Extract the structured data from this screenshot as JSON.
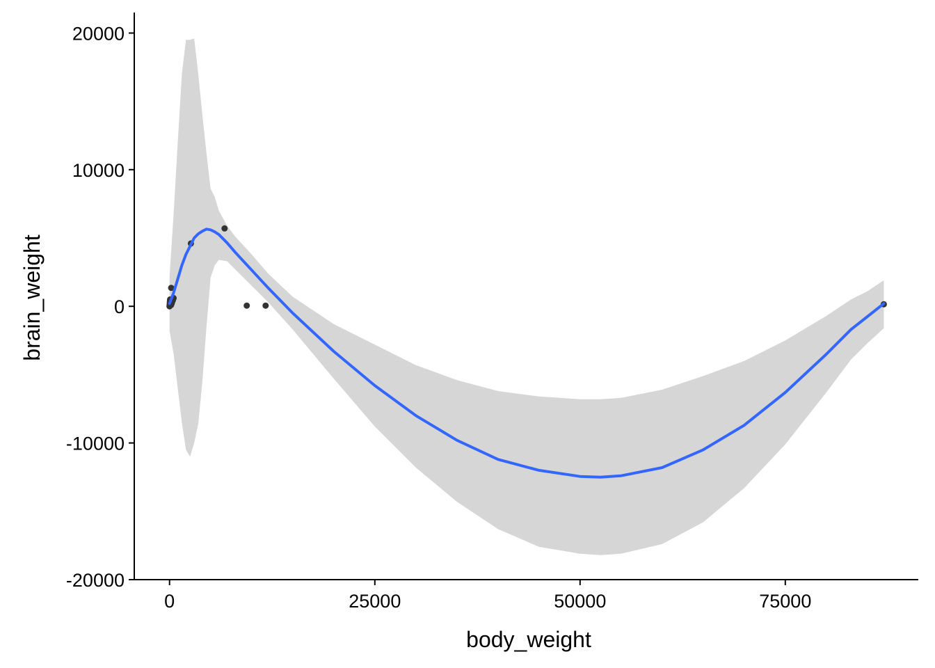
{
  "chart_data": {
    "type": "scatter",
    "xlabel": "body_weight",
    "ylabel": "brain_weight",
    "xlim": [
      -4300,
      91200
    ],
    "ylim": [
      -20000,
      21500
    ],
    "xticks": [
      {
        "value": 0,
        "label": "0"
      },
      {
        "value": 25000,
        "label": "25000"
      },
      {
        "value": 50000,
        "label": "50000"
      },
      {
        "value": 75000,
        "label": "75000"
      }
    ],
    "yticks": [
      {
        "value": -20000,
        "label": "-20000"
      },
      {
        "value": -10000,
        "label": "-10000"
      },
      {
        "value": 0,
        "label": "0"
      },
      {
        "value": 10000,
        "label": "10000"
      },
      {
        "value": 20000,
        "label": "20000"
      }
    ],
    "grid": false,
    "legend": "none",
    "colors": {
      "points": "#333333",
      "smooth_line": "#3366FF",
      "confidence_band": "#D6D6D6",
      "axis": "#000000"
    },
    "points": [
      {
        "x": 0,
        "y": 0
      },
      {
        "x": 10,
        "y": 60
      },
      {
        "x": 20,
        "y": 120
      },
      {
        "x": 30,
        "y": 200
      },
      {
        "x": 40,
        "y": 300
      },
      {
        "x": 50,
        "y": 400
      },
      {
        "x": 60,
        "y": 500
      },
      {
        "x": 80,
        "y": 150
      },
      {
        "x": 100,
        "y": 250
      },
      {
        "x": 120,
        "y": 350
      },
      {
        "x": 150,
        "y": 450
      },
      {
        "x": 180,
        "y": 100
      },
      {
        "x": 200,
        "y": 1350
      },
      {
        "x": 250,
        "y": 200
      },
      {
        "x": 300,
        "y": 300
      },
      {
        "x": 400,
        "y": 450
      },
      {
        "x": 500,
        "y": 600
      },
      {
        "x": 2600,
        "y": 4600
      },
      {
        "x": 6700,
        "y": 5700
      },
      {
        "x": 9400,
        "y": 50
      },
      {
        "x": 11700,
        "y": 50
      },
      {
        "x": 87000,
        "y": 150
      }
    ],
    "smooth": {
      "x": [
        0,
        500,
        1000,
        1500,
        2000,
        2500,
        3000,
        3500,
        4000,
        4500,
        5000,
        5500,
        6000,
        7000,
        8000,
        10000,
        12000,
        15000,
        20000,
        25000,
        30000,
        35000,
        40000,
        45000,
        50000,
        52500,
        55000,
        60000,
        65000,
        70000,
        75000,
        80000,
        83000,
        85000,
        87000
      ],
      "y": [
        200,
        1000,
        2000,
        3000,
        3800,
        4400,
        5000,
        5300,
        5500,
        5650,
        5600,
        5450,
        5250,
        4650,
        3950,
        2650,
        1350,
        -500,
        -3300,
        -5800,
        -8000,
        -9800,
        -11200,
        -12000,
        -12450,
        -12500,
        -12400,
        -11800,
        -10500,
        -8700,
        -6300,
        -3500,
        -1700,
        -750,
        200
      ],
      "lower": [
        -1800,
        -3500,
        -6000,
        -8500,
        -10500,
        -11000,
        -10000,
        -8600,
        -5500,
        -1500,
        2100,
        3000,
        3400,
        3300,
        2700,
        1500,
        300,
        -1700,
        -5300,
        -8800,
        -11800,
        -14300,
        -16300,
        -17600,
        -18100,
        -18200,
        -18100,
        -17400,
        -15800,
        -13300,
        -10100,
        -6300,
        -3900,
        -2700,
        -1600
      ],
      "upper": [
        2200,
        6800,
        12000,
        17000,
        19500,
        19500,
        19600,
        17000,
        14000,
        11200,
        8600,
        8000,
        7000,
        5900,
        5100,
        3800,
        2400,
        700,
        -1300,
        -2800,
        -4300,
        -5400,
        -6200,
        -6600,
        -6800,
        -6800,
        -6700,
        -6100,
        -5100,
        -4000,
        -2500,
        -700,
        500,
        1100,
        1900
      ]
    }
  }
}
